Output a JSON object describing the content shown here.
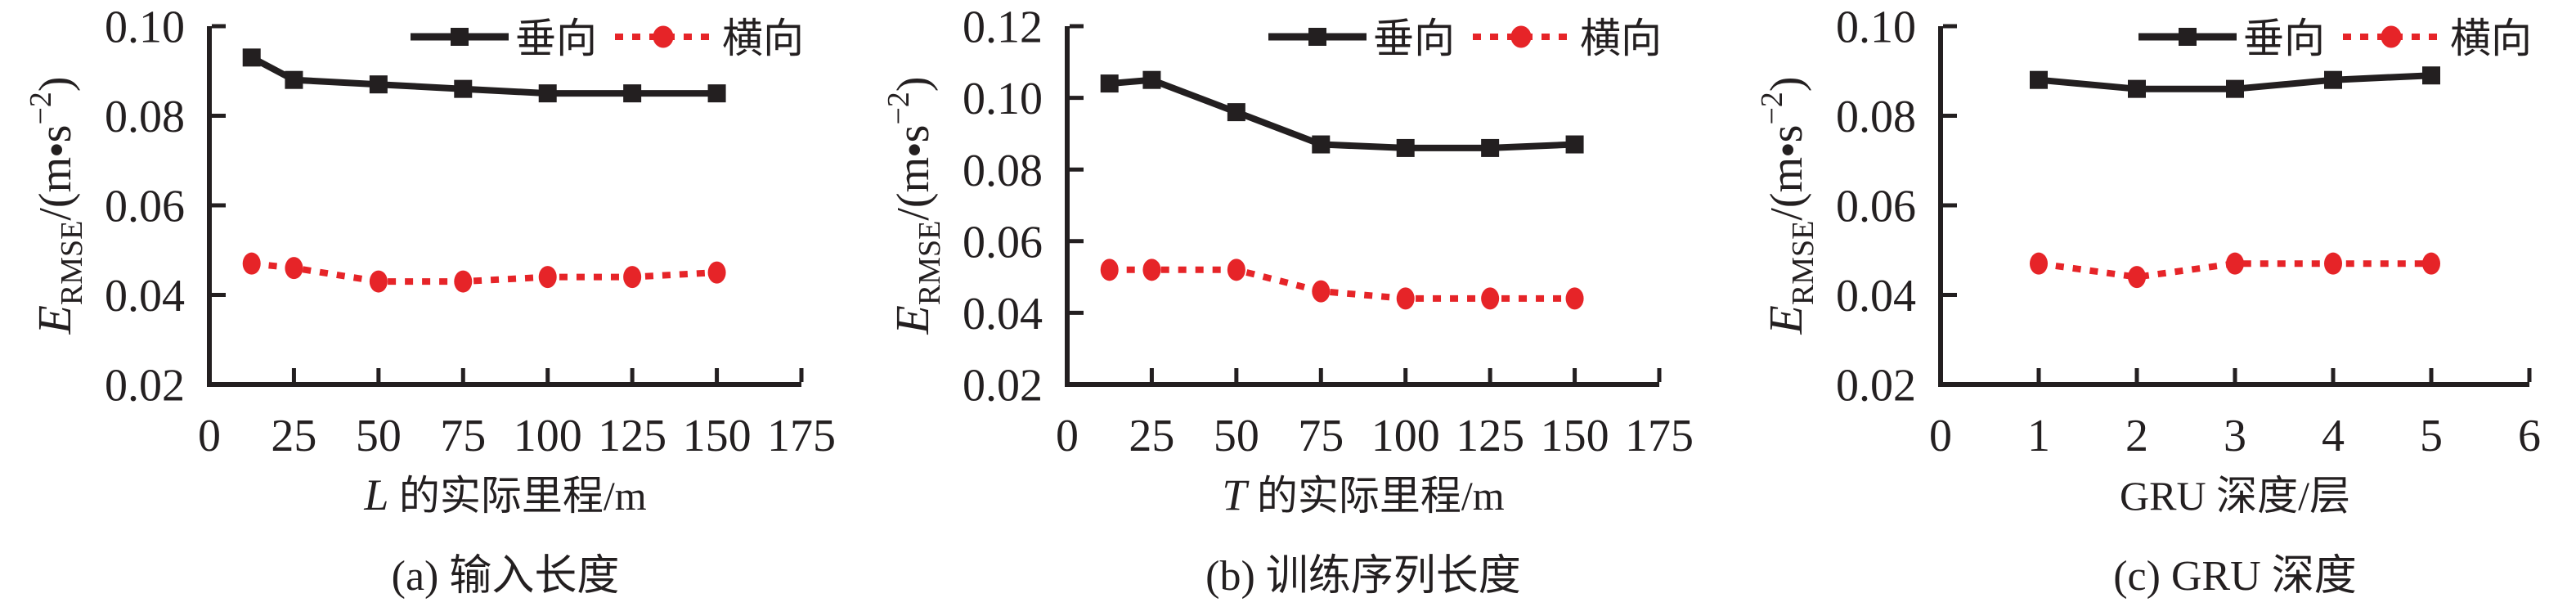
{
  "figure": {
    "background": "#ffffff",
    "text_color": "#231f20",
    "series_colors": {
      "vertical": "#231f20",
      "lateral": "#e62428"
    },
    "y_axis_title": {
      "symbol": "E",
      "subscript": "RMSE",
      "divider": "/(",
      "unit_m": "m",
      "bullet": "•",
      "unit_s": "s",
      "exponent": "−2",
      "close_paren": ")"
    },
    "legend_labels": [
      "垂向",
      "横向"
    ]
  },
  "chart_data": [
    {
      "type": "line",
      "panel": "a",
      "panel_caption": "(a) 输入长度",
      "x_axis_title": {
        "italic": "L",
        "rest": " 的实际里程/m"
      },
      "y_axis_title_text": "E_RMSE/(m•s−2)",
      "xlim": [
        0,
        175
      ],
      "ylim": [
        0.02,
        0.1
      ],
      "xticks": [
        0,
        25,
        50,
        75,
        100,
        125,
        150,
        175
      ],
      "yticks": [
        0.02,
        0.04,
        0.06,
        0.08,
        0.1
      ],
      "ytick_labels": [
        "0.02",
        "0.04",
        "0.06",
        "0.08",
        "0.10"
      ],
      "grid": false,
      "legend_position": "top-right",
      "series": [
        {
          "name": "垂向",
          "key": "vertical",
          "marker": "square",
          "line_style": "solid",
          "x": [
            12.5,
            25,
            50,
            75,
            100,
            125,
            150
          ],
          "y": [
            0.093,
            0.088,
            0.087,
            0.086,
            0.085,
            0.085,
            0.085
          ]
        },
        {
          "name": "横向",
          "key": "lateral",
          "marker": "circle",
          "line_style": "dotted",
          "x": [
            12.5,
            25,
            50,
            75,
            100,
            125,
            150
          ],
          "y": [
            0.047,
            0.046,
            0.043,
            0.043,
            0.044,
            0.044,
            0.045
          ]
        }
      ]
    },
    {
      "type": "line",
      "panel": "b",
      "panel_caption": "(b) 训练序列长度",
      "x_axis_title": {
        "italic": "T",
        "rest": " 的实际里程/m"
      },
      "y_axis_title_text": "E_RMSE/(m•s−2)",
      "xlim": [
        0,
        175
      ],
      "ylim": [
        0.02,
        0.12
      ],
      "xticks": [
        0,
        25,
        50,
        75,
        100,
        125,
        150,
        175
      ],
      "yticks": [
        0.02,
        0.04,
        0.06,
        0.08,
        0.1,
        0.12
      ],
      "ytick_labels": [
        "0.02",
        "0.04",
        "0.06",
        "0.08",
        "0.10",
        "0.12"
      ],
      "grid": false,
      "legend_position": "top-right",
      "series": [
        {
          "name": "垂向",
          "key": "vertical",
          "marker": "square",
          "line_style": "solid",
          "x": [
            12.5,
            25,
            50,
            75,
            100,
            125,
            150
          ],
          "y": [
            0.104,
            0.105,
            0.096,
            0.087,
            0.086,
            0.086,
            0.087
          ]
        },
        {
          "name": "横向",
          "key": "lateral",
          "marker": "circle",
          "line_style": "dotted",
          "x": [
            12.5,
            25,
            50,
            75,
            100,
            125,
            150
          ],
          "y": [
            0.052,
            0.052,
            0.052,
            0.046,
            0.044,
            0.044,
            0.044
          ]
        }
      ]
    },
    {
      "type": "line",
      "panel": "c",
      "panel_caption": "(c) GRU 深度",
      "x_axis_title": {
        "italic": "",
        "rest": "GRU 深度/层"
      },
      "y_axis_title_text": "E_RMSE/(m•s−2)",
      "xlim": [
        0,
        6
      ],
      "ylim": [
        0.02,
        0.1
      ],
      "xticks": [
        0,
        1,
        2,
        3,
        4,
        5,
        6
      ],
      "yticks": [
        0.02,
        0.04,
        0.06,
        0.08,
        0.1
      ],
      "ytick_labels": [
        "0.02",
        "0.04",
        "0.06",
        "0.08",
        "0.10"
      ],
      "grid": false,
      "legend_position": "top-right",
      "series": [
        {
          "name": "垂向",
          "key": "vertical",
          "marker": "square",
          "line_style": "solid",
          "x": [
            1,
            2,
            3,
            4,
            5
          ],
          "y": [
            0.088,
            0.086,
            0.086,
            0.088,
            0.089
          ]
        },
        {
          "name": "横向",
          "key": "lateral",
          "marker": "circle",
          "line_style": "dotted",
          "x": [
            1,
            2,
            3,
            4,
            5
          ],
          "y": [
            0.047,
            0.044,
            0.047,
            0.047,
            0.047
          ]
        }
      ]
    }
  ]
}
